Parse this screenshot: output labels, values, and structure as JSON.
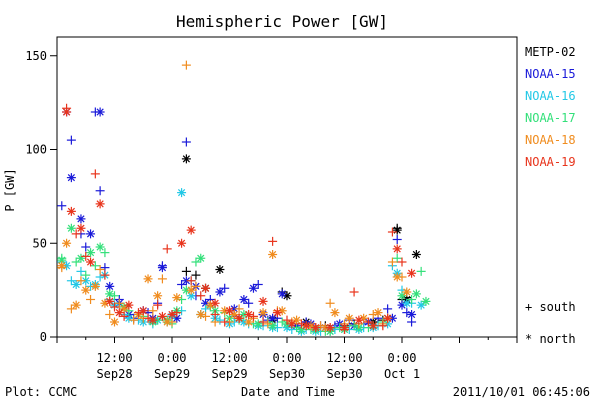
{
  "chart_data": {
    "type": "scatter",
    "title": "Hemispheric Power [GW]",
    "xlabel": "Date and Time",
    "ylabel": "P [GW]",
    "ylim": [
      0,
      160
    ],
    "xlim_hours": [
      0,
      96
    ],
    "y_ticks": [
      0,
      50,
      100,
      150
    ],
    "x_major_ticks": [
      {
        "hour": 12,
        "time": "12:00",
        "date": "Sep28"
      },
      {
        "hour": 24,
        "time": "0:00",
        "date": "Sep29"
      },
      {
        "hour": 36,
        "time": "12:00",
        "date": "Sep29"
      },
      {
        "hour": 48,
        "time": "0:00",
        "date": "Sep30"
      },
      {
        "hour": 60,
        "time": "12:00",
        "date": "Sep30"
      },
      {
        "hour": 72,
        "time": "0:00",
        "date": "Oct 1"
      }
    ],
    "grid": false,
    "legend_position": "right",
    "marker_legend": {
      "south": "+ south",
      "north": "* north"
    },
    "footer_left": "Plot: CCMC",
    "footer_right": "2011/10/01 06:45:06",
    "series": [
      {
        "name": "METP-02",
        "color": "#000000",
        "south": [
          [
            27,
            35
          ],
          [
            29,
            33
          ],
          [
            47,
            24
          ],
          [
            56,
            6
          ],
          [
            58,
            5
          ],
          [
            60,
            6
          ],
          [
            62,
            7
          ],
          [
            68,
            9
          ],
          [
            71,
            58
          ],
          [
            72,
            20
          ],
          [
            73,
            21
          ]
        ],
        "north": [
          [
            27,
            95
          ],
          [
            31,
            26
          ],
          [
            34,
            36
          ],
          [
            45,
            9
          ],
          [
            48,
            22
          ],
          [
            52,
            8
          ],
          [
            66,
            8
          ],
          [
            71,
            57
          ],
          [
            73,
            20
          ],
          [
            75,
            44
          ]
        ]
      },
      {
        "name": "NOAA-15",
        "color": "#1a1ad9",
        "south": [
          [
            1,
            70
          ],
          [
            3,
            105
          ],
          [
            5,
            55
          ],
          [
            6,
            48
          ],
          [
            8,
            120
          ],
          [
            9,
            78
          ],
          [
            10,
            37
          ],
          [
            13,
            20
          ],
          [
            16,
            10
          ],
          [
            19,
            13
          ],
          [
            21,
            18
          ],
          [
            22,
            38
          ],
          [
            24,
            12
          ],
          [
            26,
            28
          ],
          [
            27,
            104
          ],
          [
            29,
            22
          ],
          [
            32,
            20
          ],
          [
            35,
            26
          ],
          [
            37,
            11
          ],
          [
            40,
            18
          ],
          [
            42,
            28
          ],
          [
            44,
            9
          ],
          [
            46,
            10
          ],
          [
            49,
            6
          ],
          [
            52,
            8
          ],
          [
            55,
            6
          ],
          [
            58,
            6
          ],
          [
            61,
            9
          ],
          [
            64,
            7
          ],
          [
            67,
            10
          ],
          [
            69,
            15
          ],
          [
            71,
            52
          ],
          [
            73,
            13
          ],
          [
            74,
            8
          ]
        ],
        "north": [
          [
            2,
            120
          ],
          [
            3,
            85
          ],
          [
            5,
            63
          ],
          [
            7,
            55
          ],
          [
            9,
            120
          ],
          [
            11,
            27
          ],
          [
            13,
            18
          ],
          [
            15,
            12
          ],
          [
            18,
            14
          ],
          [
            20,
            10
          ],
          [
            22,
            37
          ],
          [
            25,
            10
          ],
          [
            27,
            30
          ],
          [
            29,
            27
          ],
          [
            31,
            18
          ],
          [
            34,
            24
          ],
          [
            37,
            15
          ],
          [
            39,
            20
          ],
          [
            41,
            26
          ],
          [
            43,
            12
          ],
          [
            45,
            10
          ],
          [
            47,
            23
          ],
          [
            50,
            6
          ],
          [
            53,
            7
          ],
          [
            56,
            5
          ],
          [
            59,
            7
          ],
          [
            62,
            6
          ],
          [
            65,
            8
          ],
          [
            70,
            10
          ],
          [
            72,
            17
          ],
          [
            74,
            12
          ]
        ]
      },
      {
        "name": "NOAA-16",
        "color": "#22c8e6",
        "south": [
          [
            1,
            40
          ],
          [
            3,
            30
          ],
          [
            5,
            35
          ],
          [
            7,
            27
          ],
          [
            9,
            32
          ],
          [
            11,
            20
          ],
          [
            14,
            12
          ],
          [
            17,
            9
          ],
          [
            20,
            7
          ],
          [
            23,
            8
          ],
          [
            26,
            14
          ],
          [
            28,
            30
          ],
          [
            31,
            15
          ],
          [
            34,
            9
          ],
          [
            37,
            8
          ],
          [
            40,
            7
          ],
          [
            43,
            6
          ],
          [
            46,
            5
          ],
          [
            49,
            4
          ],
          [
            52,
            4
          ],
          [
            55,
            3
          ],
          [
            58,
            4
          ],
          [
            61,
            4
          ],
          [
            64,
            5
          ],
          [
            67,
            6
          ],
          [
            70,
            38
          ],
          [
            72,
            25
          ],
          [
            74,
            18
          ]
        ],
        "north": [
          [
            2,
            38
          ],
          [
            4,
            28
          ],
          [
            6,
            30
          ],
          [
            8,
            28
          ],
          [
            10,
            33
          ],
          [
            12,
            17
          ],
          [
            15,
            10
          ],
          [
            18,
            8
          ],
          [
            21,
            9
          ],
          [
            24,
            11
          ],
          [
            26,
            77
          ],
          [
            28,
            22
          ],
          [
            30,
            12
          ],
          [
            33,
            10
          ],
          [
            36,
            7
          ],
          [
            39,
            8
          ],
          [
            42,
            6
          ],
          [
            45,
            5
          ],
          [
            48,
            5
          ],
          [
            51,
            3
          ],
          [
            54,
            3
          ],
          [
            57,
            3
          ],
          [
            60,
            4
          ],
          [
            63,
            4
          ],
          [
            66,
            5
          ],
          [
            69,
            7
          ],
          [
            71,
            34
          ],
          [
            73,
            18
          ],
          [
            76,
            17
          ]
        ]
      },
      {
        "name": "NOAA-17",
        "color": "#33e07a",
        "south": [
          [
            1,
            42
          ],
          [
            4,
            40
          ],
          [
            6,
            33
          ],
          [
            8,
            38
          ],
          [
            10,
            45
          ],
          [
            12,
            22
          ],
          [
            15,
            14
          ],
          [
            18,
            11
          ],
          [
            21,
            9
          ],
          [
            24,
            7
          ],
          [
            26,
            20
          ],
          [
            29,
            40
          ],
          [
            32,
            16
          ],
          [
            35,
            13
          ],
          [
            38,
            9
          ],
          [
            41,
            7
          ],
          [
            44,
            8
          ],
          [
            47,
            8
          ],
          [
            50,
            5
          ],
          [
            53,
            4
          ],
          [
            56,
            3
          ],
          [
            59,
            5
          ],
          [
            62,
            6
          ],
          [
            65,
            5
          ],
          [
            68,
            8
          ],
          [
            71,
            42
          ],
          [
            74,
            20
          ],
          [
            76,
            35
          ]
        ],
        "north": [
          [
            1,
            41
          ],
          [
            3,
            58
          ],
          [
            5,
            42
          ],
          [
            7,
            45
          ],
          [
            9,
            48
          ],
          [
            11,
            23
          ],
          [
            14,
            16
          ],
          [
            17,
            12
          ],
          [
            20,
            8
          ],
          [
            23,
            9
          ],
          [
            25,
            14
          ],
          [
            27,
            25
          ],
          [
            30,
            42
          ],
          [
            33,
            14
          ],
          [
            36,
            10
          ],
          [
            39,
            12
          ],
          [
            42,
            7
          ],
          [
            45,
            6
          ],
          [
            48,
            7
          ],
          [
            51,
            4
          ],
          [
            54,
            4
          ],
          [
            57,
            3
          ],
          [
            60,
            4
          ],
          [
            63,
            5
          ],
          [
            66,
            6
          ],
          [
            69,
            10
          ],
          [
            72,
            22
          ],
          [
            75,
            23
          ],
          [
            77,
            19
          ]
        ]
      },
      {
        "name": "NOAA-18",
        "color": "#f08c1e",
        "south": [
          [
            1,
            37
          ],
          [
            3,
            15
          ],
          [
            5,
            30
          ],
          [
            7,
            20
          ],
          [
            9,
            36
          ],
          [
            11,
            12
          ],
          [
            13,
            18
          ],
          [
            16,
            9
          ],
          [
            18,
            10
          ],
          [
            20,
            14
          ],
          [
            22,
            31
          ],
          [
            24,
            8
          ],
          [
            27,
            145
          ],
          [
            29,
            27
          ],
          [
            31,
            11
          ],
          [
            33,
            8
          ],
          [
            36,
            8
          ],
          [
            38,
            15
          ],
          [
            41,
            10
          ],
          [
            44,
            7
          ],
          [
            46,
            14
          ],
          [
            49,
            8
          ],
          [
            52,
            6
          ],
          [
            55,
            6
          ],
          [
            57,
            18
          ],
          [
            60,
            7
          ],
          [
            63,
            7
          ],
          [
            66,
            12
          ],
          [
            68,
            7
          ],
          [
            70,
            40
          ],
          [
            72,
            32
          ]
        ],
        "north": [
          [
            1,
            38
          ],
          [
            2,
            50
          ],
          [
            4,
            17
          ],
          [
            6,
            25
          ],
          [
            8,
            27
          ],
          [
            10,
            18
          ],
          [
            12,
            8
          ],
          [
            14,
            15
          ],
          [
            17,
            12
          ],
          [
            19,
            31
          ],
          [
            21,
            22
          ],
          [
            23,
            8
          ],
          [
            25,
            21
          ],
          [
            28,
            25
          ],
          [
            30,
            12
          ],
          [
            32,
            17
          ],
          [
            35,
            14
          ],
          [
            37,
            12
          ],
          [
            40,
            8
          ],
          [
            43,
            13
          ],
          [
            45,
            44
          ],
          [
            47,
            14
          ],
          [
            50,
            9
          ],
          [
            53,
            6
          ],
          [
            56,
            5
          ],
          [
            58,
            13
          ],
          [
            61,
            10
          ],
          [
            64,
            10
          ],
          [
            67,
            13
          ],
          [
            69,
            10
          ],
          [
            71,
            32
          ],
          [
            73,
            24
          ]
        ]
      },
      {
        "name": "NOAA-19",
        "color": "#e8341c",
        "south": [
          [
            2,
            122
          ],
          [
            4,
            55
          ],
          [
            6,
            43
          ],
          [
            8,
            87
          ],
          [
            10,
            33
          ],
          [
            12,
            16
          ],
          [
            14,
            11
          ],
          [
            17,
            13
          ],
          [
            19,
            10
          ],
          [
            21,
            17
          ],
          [
            23,
            47
          ],
          [
            25,
            13
          ],
          [
            28,
            30
          ],
          [
            30,
            22
          ],
          [
            33,
            12
          ],
          [
            35,
            8
          ],
          [
            38,
            10
          ],
          [
            41,
            11
          ],
          [
            43,
            8
          ],
          [
            45,
            51
          ],
          [
            48,
            9
          ],
          [
            51,
            7
          ],
          [
            54,
            5
          ],
          [
            57,
            5
          ],
          [
            60,
            4
          ],
          [
            62,
            24
          ],
          [
            65,
            8
          ],
          [
            68,
            6
          ],
          [
            70,
            56
          ],
          [
            72,
            40
          ]
        ],
        "north": [
          [
            2,
            120
          ],
          [
            3,
            67
          ],
          [
            5,
            58
          ],
          [
            7,
            40
          ],
          [
            9,
            71
          ],
          [
            11,
            19
          ],
          [
            13,
            13
          ],
          [
            15,
            17
          ],
          [
            18,
            14
          ],
          [
            20,
            9
          ],
          [
            22,
            11
          ],
          [
            24,
            12
          ],
          [
            26,
            50
          ],
          [
            28,
            57
          ],
          [
            31,
            26
          ],
          [
            33,
            18
          ],
          [
            36,
            14
          ],
          [
            38,
            10
          ],
          [
            40,
            12
          ],
          [
            43,
            19
          ],
          [
            46,
            13
          ],
          [
            49,
            7
          ],
          [
            52,
            6
          ],
          [
            54,
            5
          ],
          [
            57,
            5
          ],
          [
            60,
            5
          ],
          [
            63,
            9
          ],
          [
            66,
            6
          ],
          [
            69,
            10
          ],
          [
            71,
            47
          ],
          [
            74,
            34
          ]
        ]
      }
    ]
  }
}
